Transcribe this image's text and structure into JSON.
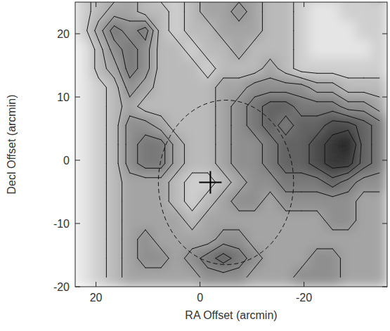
{
  "chart_data": {
    "type": "heatmap",
    "x_label": "RA Offset (arcmin)",
    "y_label": "Decl Offset (arcmin)",
    "xlim": [
      24,
      -36
    ],
    "ylim": [
      -20,
      25
    ],
    "xticks": [
      20,
      0,
      -20
    ],
    "yticks": [
      -20,
      -10,
      0,
      10,
      20
    ],
    "zlim": [
      0,
      10
    ],
    "contour_levels": [
      2.5,
      3.5,
      4.5,
      5.5,
      6.5,
      7.5,
      8.5
    ],
    "x": [
      22.5,
      19.5,
      16.5,
      13.5,
      10.5,
      7.5,
      4.5,
      1.5,
      -1.5,
      -4.5,
      -7.5,
      -10.5,
      -13.5,
      -16.5,
      -19.5,
      -22.5,
      -25.5,
      -28.5,
      -31.5,
      -34.5
    ],
    "y": [
      26.5,
      23.5,
      20.5,
      17.5,
      14.5,
      11.5,
      8.5,
      5.5,
      2.5,
      -0.5,
      -3.5,
      -6.5,
      -9.5,
      -12.5,
      -15.5,
      -18.5
    ],
    "z": [
      [
        2,
        3,
        3,
        4,
        3,
        2,
        2,
        3,
        4,
        4,
        4,
        4,
        3,
        3,
        2,
        2,
        2,
        2,
        2,
        3
      ],
      [
        2,
        3,
        4,
        4,
        3,
        3,
        2,
        3,
        4,
        4,
        5,
        4,
        3,
        3,
        2,
        1,
        1,
        2,
        2,
        2
      ],
      [
        2,
        4,
        6,
        5,
        6,
        3,
        2,
        3,
        3,
        4,
        4,
        4,
        3,
        3,
        2,
        1,
        1,
        1,
        2,
        2
      ],
      [
        1,
        3,
        5,
        6,
        5,
        3,
        3,
        2,
        3,
        3,
        4,
        3,
        3,
        3,
        2,
        1,
        1,
        1,
        1,
        2
      ],
      [
        1,
        3,
        4,
        6,
        5,
        3,
        3,
        3,
        2,
        3,
        3,
        3,
        4,
        3,
        2,
        2,
        2,
        2,
        2,
        2
      ],
      [
        1,
        2,
        3,
        5,
        4,
        3,
        3,
        3,
        3,
        4,
        4,
        5,
        5,
        5,
        5,
        4,
        4,
        3,
        3,
        3
      ],
      [
        1,
        2,
        3,
        4,
        3,
        3,
        3,
        3,
        3,
        4,
        5,
        6,
        7,
        7,
        6,
        6,
        6,
        5,
        5,
        4
      ],
      [
        1,
        2,
        3,
        5,
        5,
        4,
        3,
        3,
        3,
        4,
        5,
        6,
        7,
        6,
        7,
        7,
        8,
        8,
        7,
        6
      ],
      [
        1,
        2,
        3,
        5,
        6,
        6,
        4,
        3,
        3,
        4,
        5,
        5,
        6,
        7,
        7,
        8,
        9,
        10,
        7,
        6
      ],
      [
        1,
        2,
        3,
        5,
        6,
        6,
        4,
        3,
        3,
        4,
        5,
        5,
        6,
        7,
        7,
        8,
        9,
        9,
        7,
        6
      ],
      [
        1,
        2,
        3,
        4,
        4,
        4,
        3,
        2,
        2,
        3,
        4,
        5,
        5,
        6,
        6,
        6,
        7,
        6,
        5,
        5
      ],
      [
        1,
        2,
        3,
        4,
        4,
        4,
        3,
        2,
        3,
        4,
        5,
        5,
        4,
        5,
        5,
        5,
        5,
        5,
        4,
        4
      ],
      [
        1,
        2,
        3,
        4,
        4,
        4,
        4,
        3,
        4,
        4,
        4,
        4,
        4,
        4,
        4,
        4,
        5,
        5,
        4,
        4
      ],
      [
        1,
        2,
        3,
        4,
        5,
        4,
        4,
        4,
        4,
        5,
        5,
        4,
        4,
        4,
        4,
        4,
        4,
        4,
        4,
        4
      ],
      [
        1,
        2,
        3,
        4,
        5,
        5,
        4,
        5,
        6,
        7,
        6,
        5,
        4,
        4,
        4,
        5,
        5,
        4,
        4,
        4
      ],
      [
        1,
        2,
        3,
        4,
        4,
        4,
        4,
        4,
        5,
        5,
        5,
        4,
        4,
        4,
        5,
        5,
        5,
        4,
        4,
        4
      ]
    ],
    "annotations": [
      {
        "type": "circle",
        "x": -5,
        "y": -3.5,
        "radius": 13,
        "line_style": "dashed"
      },
      {
        "type": "marker",
        "marker": "cross",
        "x": -2,
        "y": -3.5
      }
    ]
  }
}
